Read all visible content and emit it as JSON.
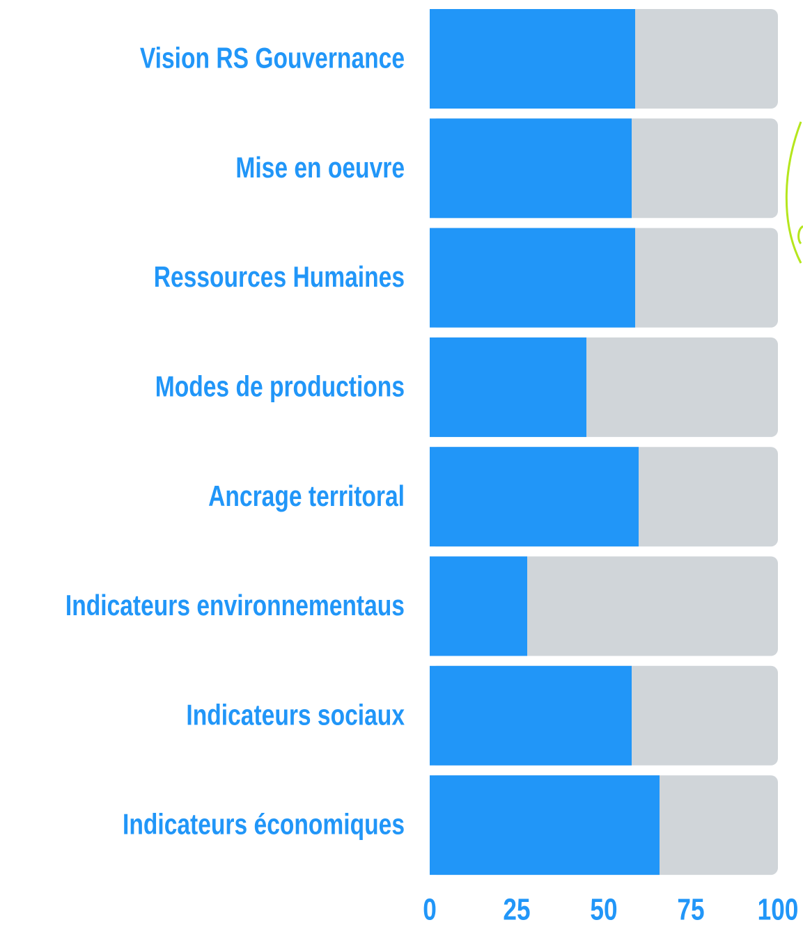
{
  "chart_data": {
    "type": "bar",
    "orientation": "horizontal",
    "categories": [
      "Vision RS Gouvernance",
      "Mise en oeuvre",
      "Ressources Humaines",
      "Modes de productions",
      "Ancrage territoral",
      "Indicateurs environnementaus",
      "Indicateurs sociaux",
      "Indicateurs économiques"
    ],
    "values": [
      59,
      58,
      59,
      45,
      60,
      28,
      58,
      66
    ],
    "color": "#2196f8",
    "track_color": "#d0d5d9",
    "xlim": [
      0,
      100
    ],
    "xticks": [
      0,
      25,
      50,
      75,
      100
    ],
    "grid": false
  }
}
